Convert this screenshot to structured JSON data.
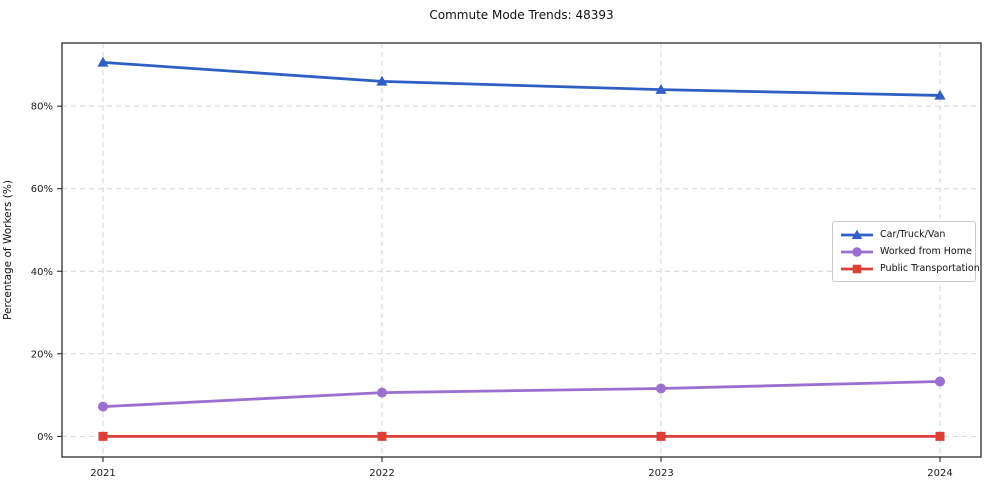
{
  "figure": {
    "title": "Commute Mode Trends: 48393"
  },
  "chart_data": {
    "type": "line",
    "title": "Commute Mode Trends: 48393",
    "xlabel": "",
    "ylabel": "Percentage of Workers (%)",
    "x": [
      2021,
      2022,
      2023,
      2024
    ],
    "x_labels": [
      "2021",
      "2022",
      "2023",
      "2024"
    ],
    "series": [
      {
        "name": "Car/Truck/Van",
        "values": [
          90.6,
          86.0,
          84.0,
          82.6
        ],
        "color": "#2f5fc4",
        "marker": "triangle"
      },
      {
        "name": "Worked from Home",
        "values": [
          7.2,
          10.6,
          11.6,
          13.3
        ],
        "color": "#9a6fd0",
        "marker": "circle"
      },
      {
        "name": "Public Transportation",
        "values": [
          0,
          0,
          0,
          0
        ],
        "color": "#dc3f38",
        "marker": "square"
      }
    ],
    "yticks": [
      0,
      20,
      40,
      60,
      80
    ],
    "ytick_labels": [
      "0%",
      "20%",
      "40%",
      "60%",
      "80%"
    ],
    "ylim": [
      -5,
      95.3
    ],
    "grid": true,
    "grid_style": "dashed",
    "grid_color": "#d4d4d4",
    "spine_color": "#1a1a1a",
    "tick_text_color": "#1a1a1a",
    "legend_position": "center right"
  }
}
